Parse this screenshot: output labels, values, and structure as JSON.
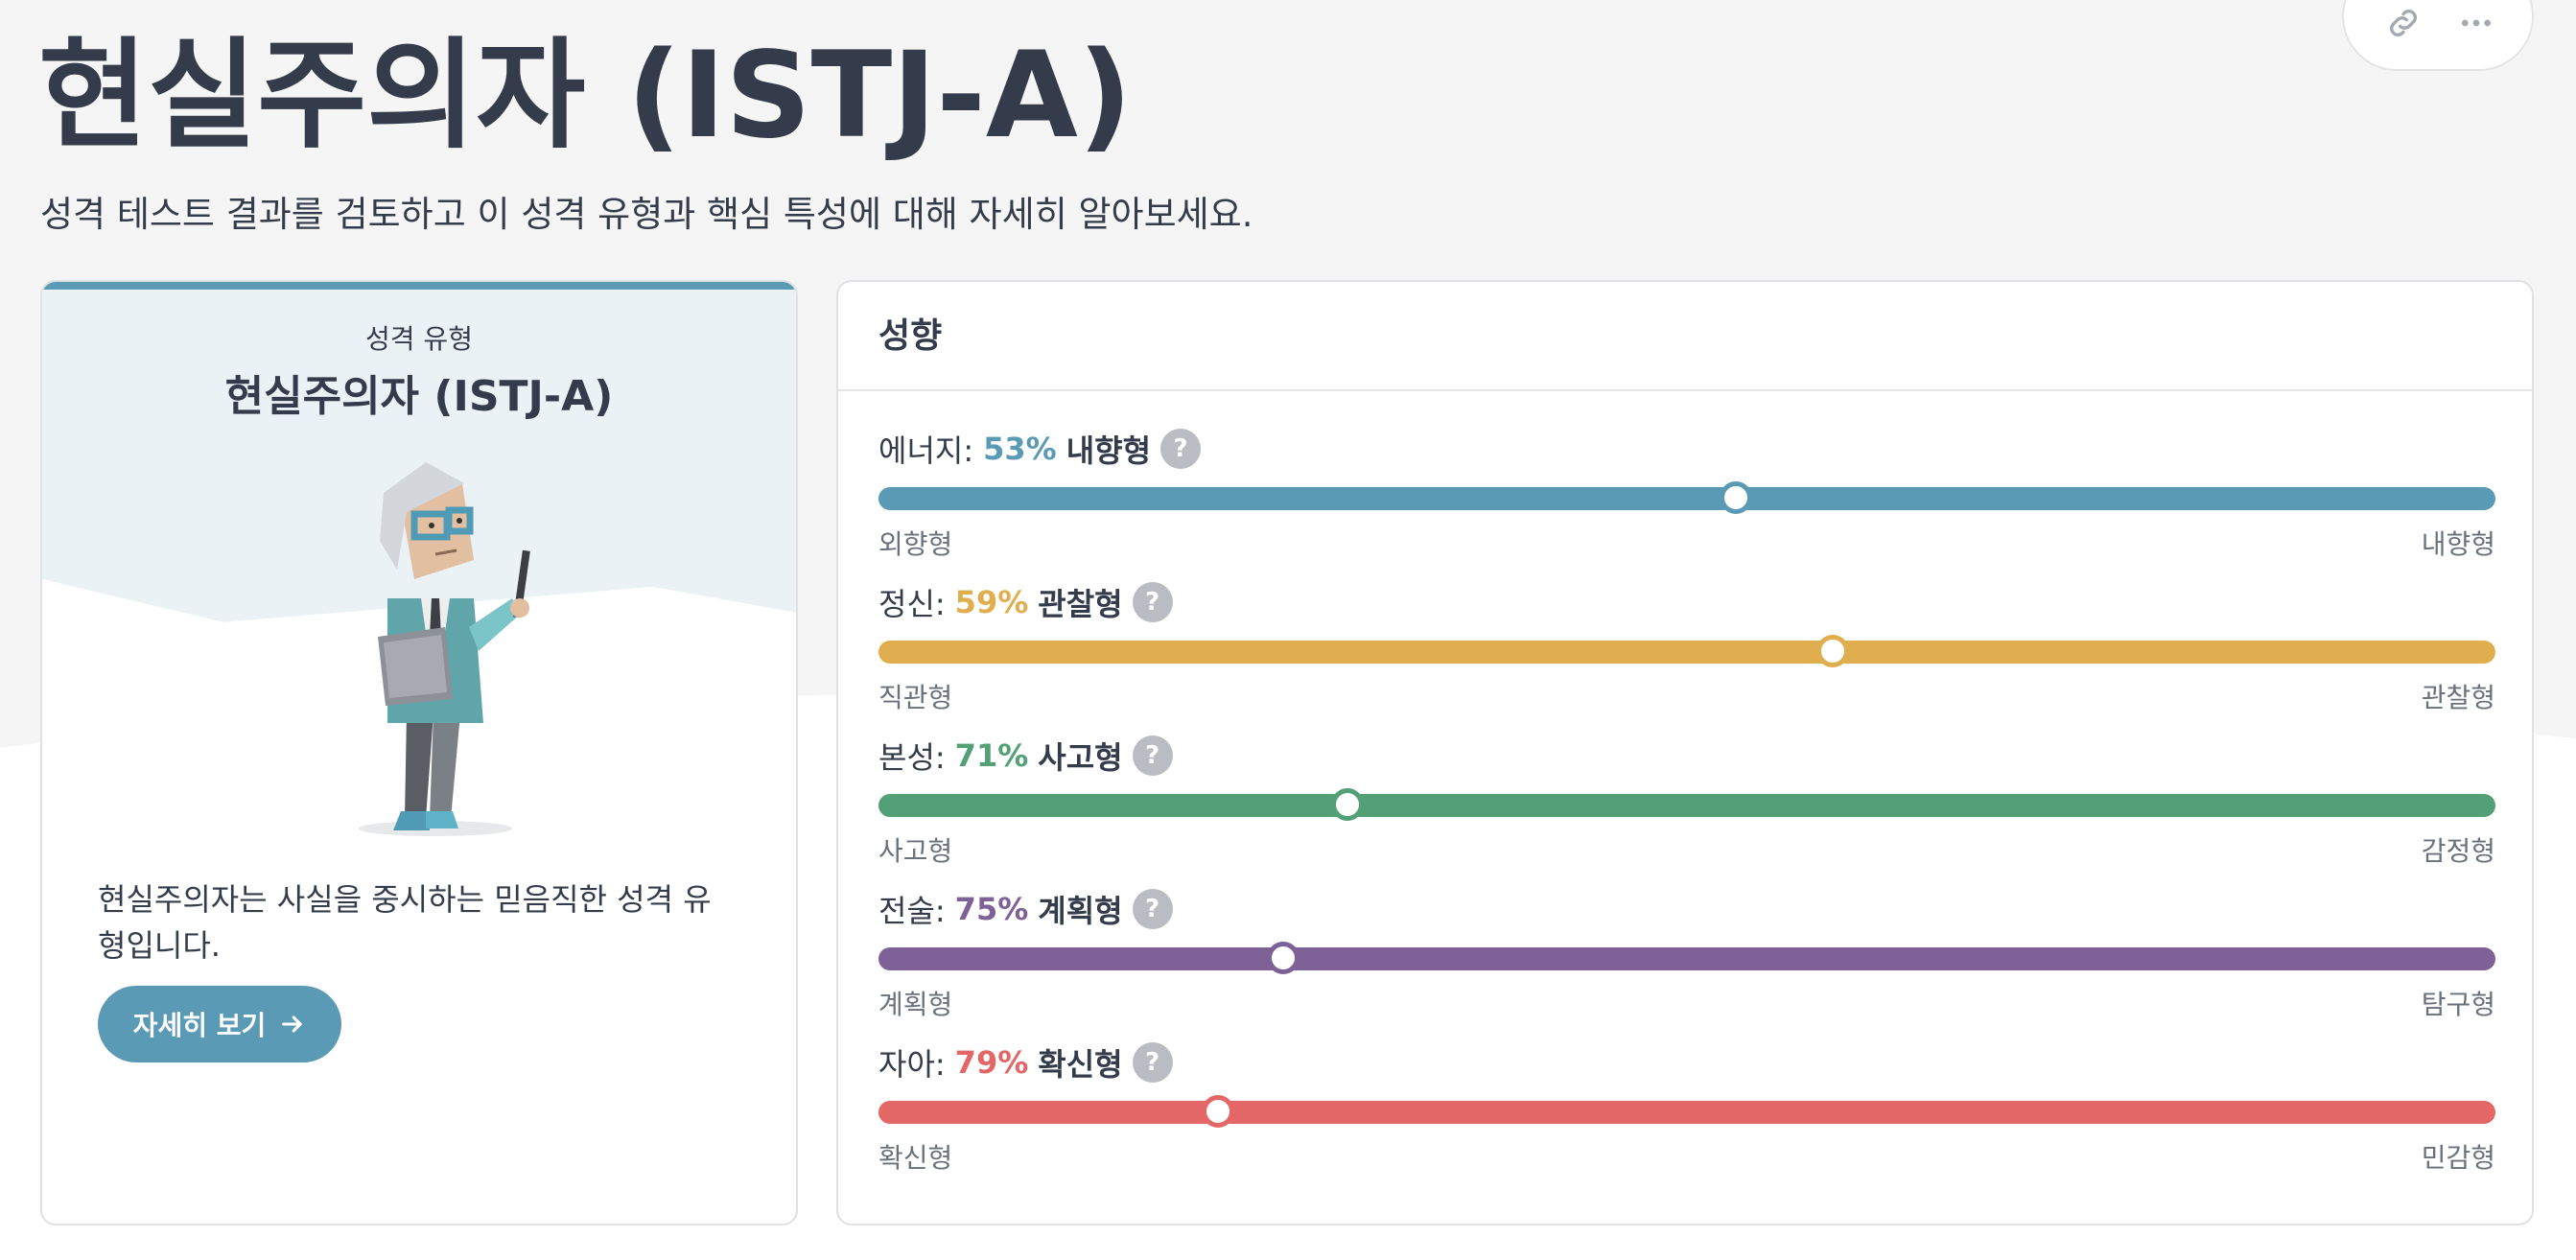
{
  "header": {
    "title": "현실주의자 (ISTJ-A)",
    "subtitle": "성격 테스트 결과를 검토하고 이 성격 유형과 핵심 특성에 대해 자세히 알아보세요."
  },
  "actions": {
    "link_icon": "link-icon",
    "more_icon": "more-icon"
  },
  "type_card": {
    "label": "성격 유형",
    "name": "현실주의자 (ISTJ-A)",
    "description": "현실주의자는 사실을 중시하는 믿음직한 성격 유형입니다.",
    "button_label": "자세히 보기",
    "accent_color": "#5b9ab5"
  },
  "traits_card": {
    "title": "성향",
    "traits": [
      {
        "label": "에너지:",
        "percent": "53%",
        "side": "내향형",
        "left": "외향형",
        "right": "내향형",
        "color": "#5b9ab5",
        "position": 0.53
      },
      {
        "label": "정신:",
        "percent": "59%",
        "side": "관찰형",
        "left": "직관형",
        "right": "관찰형",
        "color": "#e0ae4f",
        "position": 0.59
      },
      {
        "label": "본성:",
        "percent": "71%",
        "side": "사고형",
        "left": "사고형",
        "right": "감정형",
        "color": "#53a077",
        "position": 0.29
      },
      {
        "label": "전술:",
        "percent": "75%",
        "side": "계획형",
        "left": "계획형",
        "right": "탐구형",
        "color": "#7e6196",
        "position": 0.25
      },
      {
        "label": "자아:",
        "percent": "79%",
        "side": "확신형",
        "left": "확신형",
        "right": "민감형",
        "color": "#e26766",
        "position": 0.21
      }
    ]
  }
}
